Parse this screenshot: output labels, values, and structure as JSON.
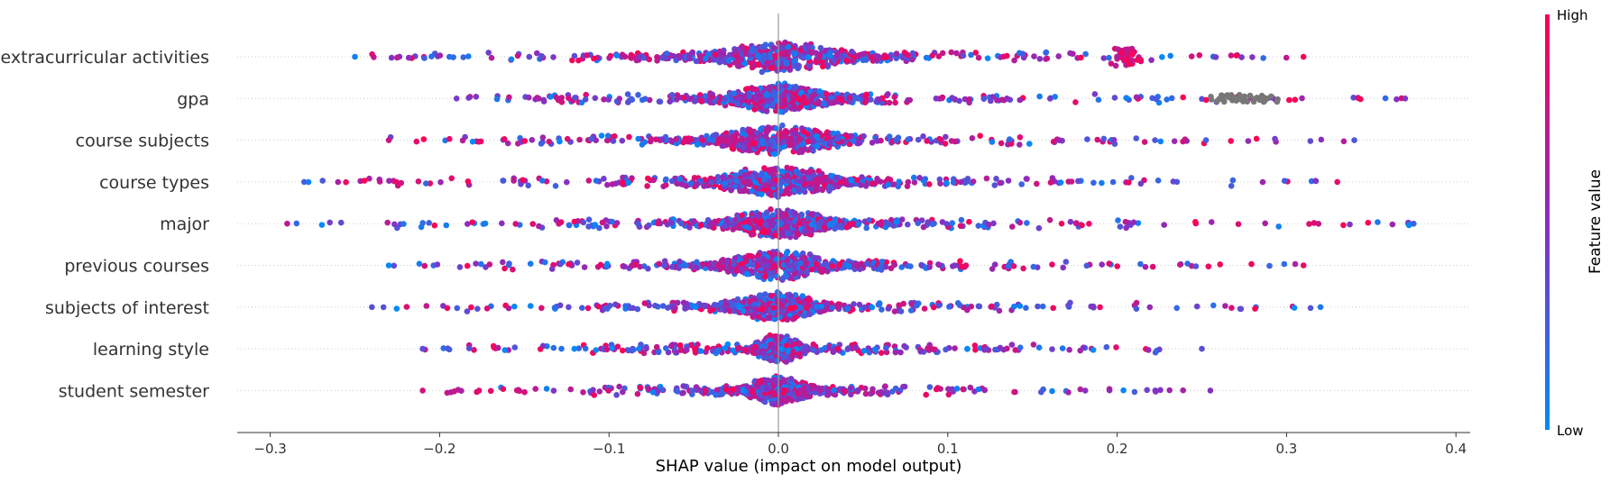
{
  "chart_data": {
    "type": "scatter",
    "subtype": "shap-beeswarm",
    "title": "",
    "xlabel": "SHAP value (impact on model output)",
    "ylabel": "",
    "xlim": [
      -0.32,
      0.41
    ],
    "xticks": [
      -0.3,
      -0.2,
      -0.1,
      0.0,
      0.1,
      0.2,
      0.3,
      0.4
    ],
    "xtick_labels": [
      "−0.3",
      "−0.2",
      "−0.1",
      "0.0",
      "0.1",
      "0.2",
      "0.3",
      "0.4"
    ],
    "features": [
      {
        "name": "extracurricular activities",
        "min": -0.25,
        "max": 0.31,
        "core_width": 0.07,
        "spread": 0.1
      },
      {
        "name": "gpa",
        "min": -0.19,
        "max": 0.37,
        "core_width": 0.05,
        "spread": 0.09
      },
      {
        "name": "course subjects",
        "min": -0.23,
        "max": 0.34,
        "core_width": 0.06,
        "spread": 0.09
      },
      {
        "name": "course types",
        "min": -0.28,
        "max": 0.33,
        "core_width": 0.06,
        "spread": 0.09
      },
      {
        "name": "major",
        "min": -0.29,
        "max": 0.375,
        "core_width": 0.05,
        "spread": 0.1
      },
      {
        "name": "previous courses",
        "min": -0.23,
        "max": 0.31,
        "core_width": 0.05,
        "spread": 0.08
      },
      {
        "name": "subjects of interest",
        "min": -0.24,
        "max": 0.32,
        "core_width": 0.04,
        "spread": 0.08
      },
      {
        "name": "learning style",
        "min": -0.21,
        "max": 0.25,
        "core_width": 0.02,
        "spread": 0.07
      },
      {
        "name": "student semester",
        "min": -0.21,
        "max": 0.255,
        "core_width": 0.03,
        "spread": 0.06
      }
    ],
    "colorbar": {
      "title": "Feature value",
      "high_label": "High",
      "low_label": "Low",
      "high_color": "#ff0052",
      "low_color": "#008bfb",
      "missing_color": "#777777"
    },
    "grid": false,
    "legend": "colorbar right"
  }
}
